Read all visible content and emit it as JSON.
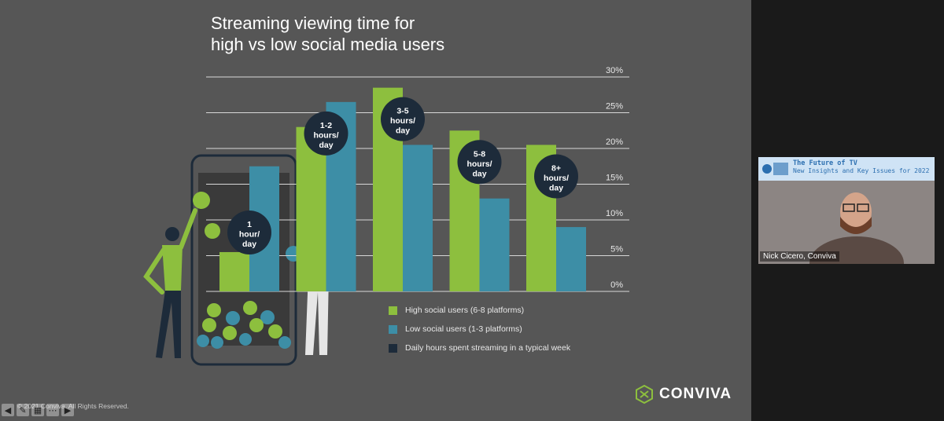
{
  "slide": {
    "title_line1": "Streaming viewing time for",
    "title_line2": "high vs low social media users",
    "copyright": "© 2021 Conviva. All Rights Reserved.",
    "brand": "CONVIVA"
  },
  "chart_data": {
    "type": "bar",
    "title": "Streaming viewing time for high vs low social media users",
    "categories": [
      "1 hour/ day",
      "1-2 hours/ day",
      "3-5 hours/ day",
      "5-8 hours/ day",
      "8+ hours/ day"
    ],
    "category_lines": [
      [
        "1",
        "hour/",
        "day"
      ],
      [
        "1-2",
        "hours/",
        "day"
      ],
      [
        "3-5",
        "hours/",
        "day"
      ],
      [
        "5-8",
        "hours/",
        "day"
      ],
      [
        "8+",
        "hours/",
        "day"
      ]
    ],
    "series": [
      {
        "name": "High social users (6-8 platforms)",
        "color": "#8dbf3e",
        "values": [
          5.5,
          23,
          28.5,
          22.5,
          20.5
        ]
      },
      {
        "name": "Low social users (1-3 platforms)",
        "color": "#3d8ea6",
        "values": [
          17.5,
          26.5,
          20.5,
          13,
          9
        ]
      }
    ],
    "ylim": [
      0,
      30
    ],
    "yticks": [
      "0%",
      "5%",
      "10%",
      "15%",
      "20%",
      "25%",
      "30%"
    ],
    "grid": true,
    "legend_extra": {
      "name": "Daily hours spent streaming in a typical week",
      "color": "#1d2b3a"
    }
  },
  "toolbar": {
    "icons": [
      "back-arrow-icon",
      "pen-icon",
      "grid-icon",
      "more-icon",
      "forward-arrow-icon"
    ],
    "glyphs": [
      "◀",
      "✎",
      "▦",
      "⋯",
      "▶"
    ]
  },
  "webcam": {
    "banner_title": "The Future of TV",
    "banner_subtitle": "New Insights and Key Issues for 2022",
    "speaker_name": "Nick Cicero, Conviva"
  },
  "colors": {
    "slide_bg": "#565656",
    "frame_bg": "#1a1a1a",
    "green": "#8dbf3e",
    "blue": "#3d8ea6",
    "navy": "#1d2b3a"
  }
}
